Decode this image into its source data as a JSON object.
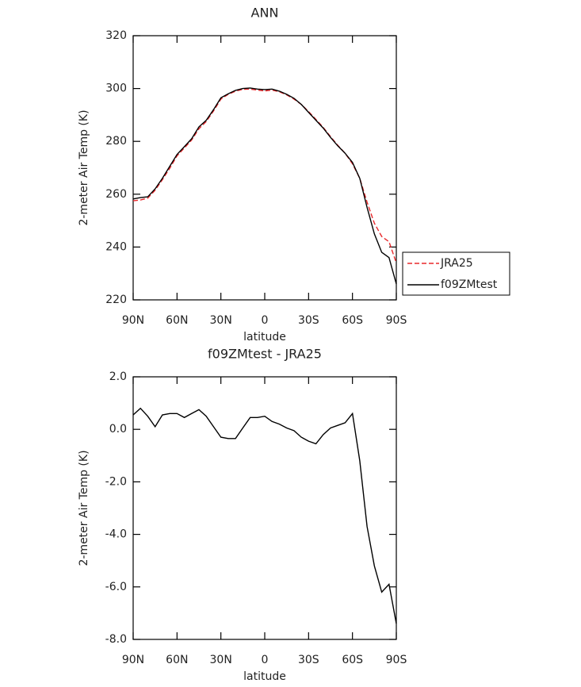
{
  "chart_data": [
    {
      "type": "line",
      "title": "ANN",
      "x_label": "latitude",
      "y_label": "2-meter Air Temp (K)",
      "x": [
        90,
        85,
        80,
        75,
        70,
        65,
        60,
        55,
        50,
        45,
        40,
        35,
        30,
        25,
        20,
        15,
        10,
        5,
        0,
        -5,
        -10,
        -15,
        -20,
        -25,
        -30,
        -35,
        -40,
        -45,
        -50,
        -55,
        -60,
        -65,
        -70,
        -75,
        -80,
        -85,
        -90
      ],
      "xlim": [
        90,
        -90
      ],
      "xticks": [
        {
          "value": 90,
          "label": "90N"
        },
        {
          "value": 60,
          "label": "60N"
        },
        {
          "value": 30,
          "label": "30N"
        },
        0,
        {
          "value": -30,
          "label": "30S"
        },
        {
          "value": -60,
          "label": "60S"
        },
        {
          "value": -90,
          "label": "90S"
        }
      ],
      "ylim": [
        220,
        320
      ],
      "yticks": [
        220,
        240,
        260,
        280,
        300,
        320
      ],
      "legend": "right",
      "series": [
        {
          "name": "JRA25",
          "color": "#e8282b",
          "dash": true,
          "values": [
            257.5,
            257.8,
            258.5,
            261.5,
            265.5,
            269.8,
            274.5,
            277.5,
            280.5,
            284.8,
            287.5,
            291.5,
            296,
            297.8,
            299,
            299.7,
            299.8,
            299.4,
            299.1,
            299.4,
            298.8,
            297.6,
            296,
            294,
            291.3,
            288.3,
            285.3,
            281.8,
            278.5,
            275.5,
            271.5,
            266,
            257,
            249,
            244,
            242,
            234
          ]
        },
        {
          "name": "f09ZMtest",
          "color": "#000000",
          "dash": false,
          "values": [
            258.2,
            258.7,
            259,
            262,
            266,
            270.5,
            275,
            278,
            281,
            285.5,
            288,
            292,
            296.5,
            298,
            299.3,
            300,
            300.2,
            299.8,
            299.6,
            299.8,
            299,
            297.8,
            296.3,
            294,
            291,
            288,
            285,
            281.5,
            278.3,
            275.5,
            272,
            266,
            255,
            245,
            238,
            236,
            226
          ]
        }
      ]
    },
    {
      "type": "line",
      "title": "f09ZMtest - JRA25",
      "x_label": "latitude",
      "y_label": "2-meter Air Temp (K)",
      "x": [
        90,
        85,
        80,
        75,
        70,
        65,
        60,
        55,
        50,
        45,
        40,
        35,
        30,
        25,
        20,
        15,
        10,
        5,
        0,
        -5,
        -10,
        -15,
        -20,
        -25,
        -30,
        -35,
        -40,
        -45,
        -50,
        -55,
        -60,
        -65,
        -70,
        -75,
        -80,
        -85,
        -90
      ],
      "xlim": [
        90,
        -90
      ],
      "xticks": [
        {
          "value": 90,
          "label": "90N"
        },
        {
          "value": 60,
          "label": "60N"
        },
        {
          "value": 30,
          "label": "30N"
        },
        0,
        {
          "value": -30,
          "label": "30S"
        },
        {
          "value": -60,
          "label": "60S"
        },
        {
          "value": -90,
          "label": "90S"
        }
      ],
      "ylim": [
        -8,
        2
      ],
      "yticks": [
        {
          "value": -8,
          "label": "-8.0"
        },
        {
          "value": -6,
          "label": "-6.0"
        },
        {
          "value": -4,
          "label": "-4.0"
        },
        {
          "value": -2,
          "label": "-2.0"
        },
        {
          "value": 0,
          "label": "0.0"
        },
        {
          "value": 2,
          "label": "2.0"
        }
      ],
      "series": [
        {
          "color": "#000000",
          "dash": false,
          "values": [
            0.55,
            0.8,
            0.5,
            0.1,
            0.55,
            0.6,
            0.6,
            0.45,
            0.6,
            0.75,
            0.5,
            0.1,
            -0.3,
            -0.35,
            -0.35,
            0.05,
            0.45,
            0.45,
            0.5,
            0.3,
            0.2,
            0.05,
            -0.05,
            -0.3,
            -0.45,
            -0.55,
            -0.2,
            0.05,
            0.15,
            0.25,
            0.6,
            -1.2,
            -3.7,
            -5.2,
            -6.2,
            -5.9,
            -7.4
          ]
        }
      ]
    }
  ]
}
